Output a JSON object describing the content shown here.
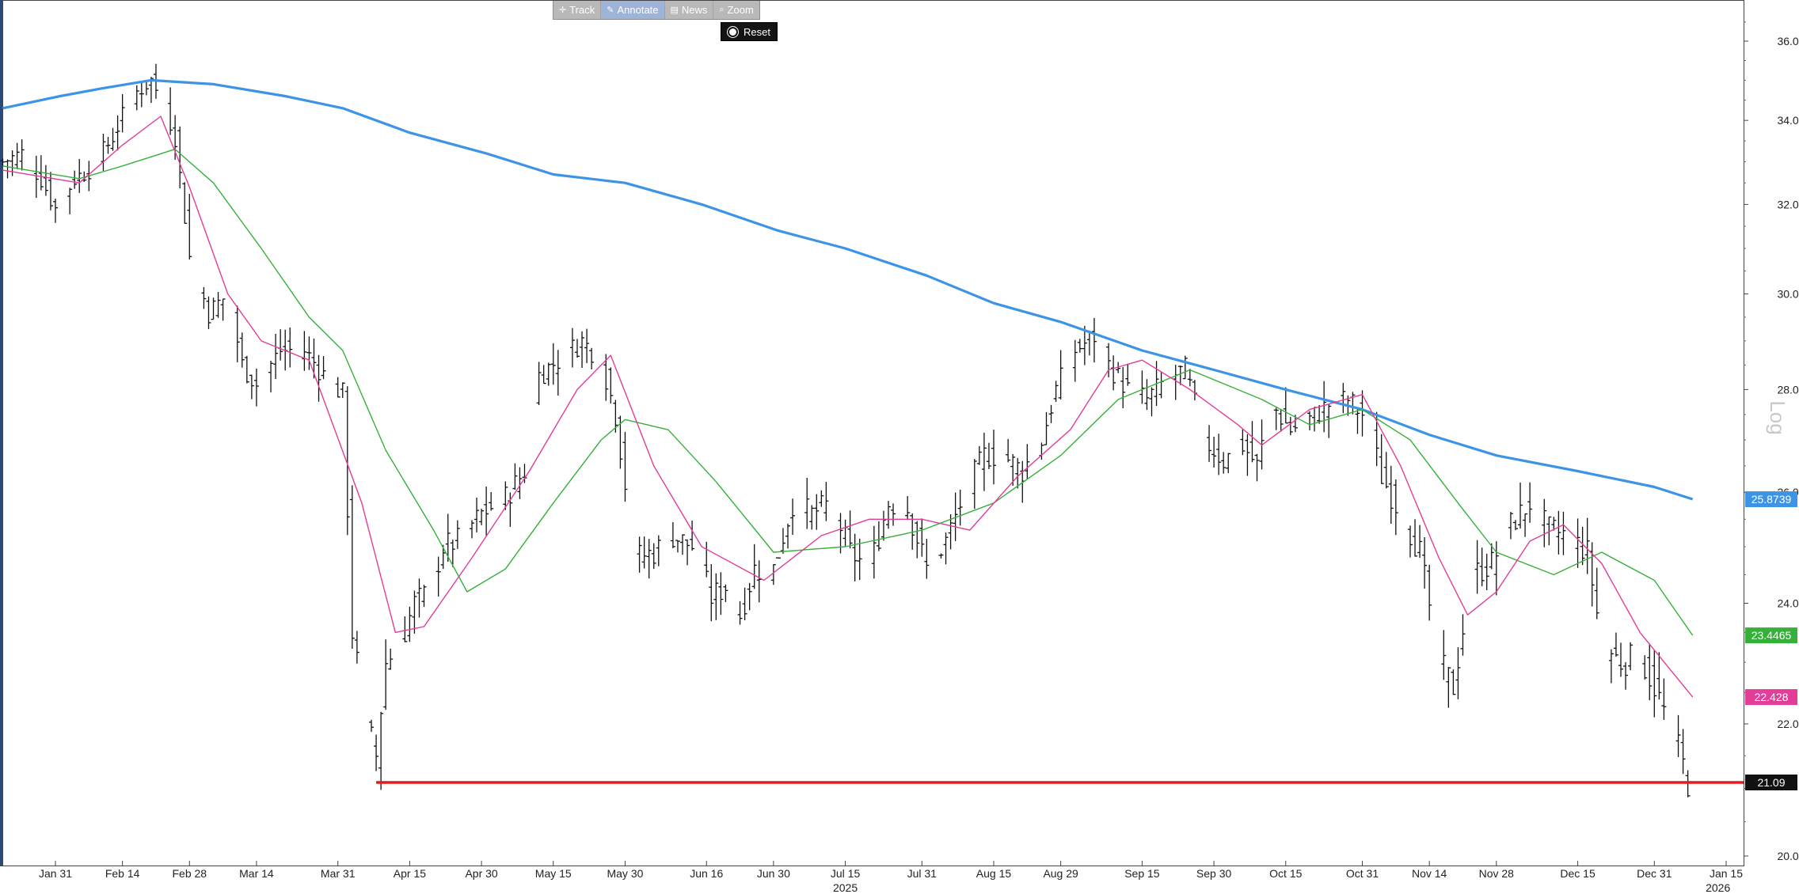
{
  "toolbar": {
    "items": [
      {
        "label": "Track",
        "icon": "crosshair-icon",
        "active": false
      },
      {
        "label": "Annotate",
        "icon": "pencil-icon",
        "active": true
      },
      {
        "label": "News",
        "icon": "news-icon",
        "active": false
      },
      {
        "label": "Zoom",
        "icon": "magnifier-icon",
        "active": false
      }
    ],
    "reset_label": "Reset"
  },
  "chart_data": {
    "type": "line",
    "chart_style": "ohlc-bar",
    "y_scale": "log",
    "scale_label": "Log",
    "ylim": [
      20.0,
      37.0
    ],
    "y_ticks": [
      "20.00",
      "22.00",
      "24.00",
      "26.00",
      "28.00",
      "30.00",
      "32.00",
      "34.00",
      "36.00"
    ],
    "xlim": [
      "2025-01-19",
      "2026-01-16"
    ],
    "x_ticks": [
      {
        "date": "2025-01-31",
        "label": "Jan 31"
      },
      {
        "date": "2025-02-14",
        "label": "Feb 14"
      },
      {
        "date": "2025-02-28",
        "label": "Feb 28"
      },
      {
        "date": "2025-03-14",
        "label": "Mar 14"
      },
      {
        "date": "2025-03-31",
        "label": "Mar 31"
      },
      {
        "date": "2025-04-15",
        "label": "Apr 15"
      },
      {
        "date": "2025-04-30",
        "label": "Apr 30"
      },
      {
        "date": "2025-05-15",
        "label": "May 15"
      },
      {
        "date": "2025-05-30",
        "label": "May 30"
      },
      {
        "date": "2025-06-16",
        "label": "Jun 16"
      },
      {
        "date": "2025-06-30",
        "label": "Jun 30"
      },
      {
        "date": "2025-07-15",
        "label": "Jul 15"
      },
      {
        "date": "2025-07-31",
        "label": "Jul 31"
      },
      {
        "date": "2025-08-15",
        "label": "Aug 15"
      },
      {
        "date": "2025-08-29",
        "label": "Aug 29"
      },
      {
        "date": "2025-09-15",
        "label": "Sep 15"
      },
      {
        "date": "2025-09-30",
        "label": "Sep 30"
      },
      {
        "date": "2025-10-15",
        "label": "Oct 15"
      },
      {
        "date": "2025-10-31",
        "label": "Oct 31"
      },
      {
        "date": "2025-11-14",
        "label": "Nov 14"
      },
      {
        "date": "2025-11-28",
        "label": "Nov 28"
      },
      {
        "date": "2025-12-15",
        "label": "Dec 15"
      },
      {
        "date": "2025-12-31",
        "label": "Dec 31"
      },
      {
        "date": "2026-01-15",
        "label": "Jan 15"
      }
    ],
    "year_labels": [
      {
        "date": "2025-07-15",
        "label": "2025"
      },
      {
        "date": "2026-01-08",
        "label": "2026"
      }
    ],
    "price_anchors": [
      [
        "2025-01-20",
        33.0
      ],
      [
        "2025-01-24",
        33.2
      ],
      [
        "2025-01-28",
        32.6
      ],
      [
        "2025-01-31",
        31.9
      ],
      [
        "2025-02-04",
        32.6
      ],
      [
        "2025-02-08",
        32.9
      ],
      [
        "2025-02-12",
        33.6
      ],
      [
        "2025-02-16",
        34.6
      ],
      [
        "2025-02-20",
        35.0
      ],
      [
        "2025-02-23",
        34.3
      ],
      [
        "2025-02-25",
        33.6
      ],
      [
        "2025-02-28",
        30.8
      ],
      [
        "2025-03-04",
        29.6
      ],
      [
        "2025-03-08",
        30.0
      ],
      [
        "2025-03-11",
        28.5
      ],
      [
        "2025-03-14",
        28.1
      ],
      [
        "2025-03-19",
        28.8
      ],
      [
        "2025-03-24",
        28.8
      ],
      [
        "2025-03-28",
        28.3
      ],
      [
        "2025-04-01",
        27.9
      ],
      [
        "2025-04-03",
        23.5
      ],
      [
        "2025-04-06",
        22.0
      ],
      [
        "2025-04-08",
        21.5
      ],
      [
        "2025-04-10",
        23.0
      ],
      [
        "2025-04-13",
        23.3
      ],
      [
        "2025-04-16",
        24.0
      ],
      [
        "2025-04-19",
        24.2
      ],
      [
        "2025-04-22",
        25.0
      ],
      [
        "2025-04-25",
        25.1
      ],
      [
        "2025-04-30",
        25.6
      ],
      [
        "2025-05-05",
        25.9
      ],
      [
        "2025-05-09",
        26.4
      ],
      [
        "2025-05-12",
        28.3
      ],
      [
        "2025-05-16",
        28.6
      ],
      [
        "2025-05-21",
        29.0
      ],
      [
        "2025-05-25",
        28.6
      ],
      [
        "2025-05-28",
        27.5
      ],
      [
        "2025-06-01",
        24.8
      ],
      [
        "2025-06-05",
        24.9
      ],
      [
        "2025-06-09",
        25.2
      ],
      [
        "2025-06-13",
        25.0
      ],
      [
        "2025-06-17",
        24.1
      ],
      [
        "2025-06-20",
        24.3
      ],
      [
        "2025-06-23",
        23.8
      ],
      [
        "2025-06-26",
        24.6
      ],
      [
        "2025-06-30",
        24.6
      ],
      [
        "2025-07-04",
        25.8
      ],
      [
        "2025-07-08",
        25.6
      ],
      [
        "2025-07-12",
        25.8
      ],
      [
        "2025-07-16",
        24.9
      ],
      [
        "2025-07-20",
        24.6
      ],
      [
        "2025-07-24",
        25.8
      ],
      [
        "2025-07-28",
        25.7
      ],
      [
        "2025-08-01",
        24.6
      ],
      [
        "2025-08-05",
        25.1
      ],
      [
        "2025-08-09",
        26.0
      ],
      [
        "2025-08-13",
        26.7
      ],
      [
        "2025-08-17",
        26.7
      ],
      [
        "2025-08-21",
        26.4
      ],
      [
        "2025-08-25",
        27.0
      ],
      [
        "2025-08-28",
        28.0
      ],
      [
        "2025-09-01",
        28.8
      ],
      [
        "2025-09-05",
        29.1
      ],
      [
        "2025-09-08",
        28.5
      ],
      [
        "2025-09-12",
        28.0
      ],
      [
        "2025-09-16",
        27.8
      ],
      [
        "2025-09-20",
        28.2
      ],
      [
        "2025-09-24",
        28.4
      ],
      [
        "2025-09-28",
        27.0
      ],
      [
        "2025-10-02",
        26.6
      ],
      [
        "2025-10-06",
        26.9
      ],
      [
        "2025-10-09",
        26.5
      ],
      [
        "2025-10-12",
        27.7
      ],
      [
        "2025-10-16",
        27.2
      ],
      [
        "2025-10-20",
        27.4
      ],
      [
        "2025-10-24",
        27.7
      ],
      [
        "2025-10-28",
        27.8
      ],
      [
        "2025-11-01",
        27.4
      ],
      [
        "2025-11-04",
        26.3
      ],
      [
        "2025-11-08",
        25.6
      ],
      [
        "2025-11-12",
        24.9
      ],
      [
        "2025-11-16",
        23.0
      ],
      [
        "2025-11-19",
        22.6
      ],
      [
        "2025-11-23",
        24.5
      ],
      [
        "2025-11-27",
        24.7
      ],
      [
        "2025-12-01",
        25.4
      ],
      [
        "2025-12-05",
        25.8
      ],
      [
        "2025-12-09",
        25.3
      ],
      [
        "2025-12-13",
        25.2
      ],
      [
        "2025-12-17",
        24.9
      ],
      [
        "2025-12-20",
        23.3
      ],
      [
        "2025-12-24",
        23.0
      ],
      [
        "2025-12-28",
        23.1
      ],
      [
        "2025-12-31",
        22.6
      ],
      [
        "2026-01-03",
        22.0
      ],
      [
        "2026-01-05",
        21.6
      ],
      [
        "2026-01-07",
        21.1
      ]
    ],
    "series": [
      {
        "name": "",
        "color": "#3d94e6",
        "tag_label": "25.8739",
        "points": [
          [
            "2025-01-20",
            34.3
          ],
          [
            "2025-02-01",
            34.6
          ],
          [
            "2025-02-10",
            34.8
          ],
          [
            "2025-02-20",
            35.0
          ],
          [
            "2025-03-05",
            34.9
          ],
          [
            "2025-03-20",
            34.6
          ],
          [
            "2025-04-01",
            34.3
          ],
          [
            "2025-04-15",
            33.7
          ],
          [
            "2025-05-01",
            33.2
          ],
          [
            "2025-05-15",
            32.7
          ],
          [
            "2025-05-30",
            32.5
          ],
          [
            "2025-06-15",
            32.0
          ],
          [
            "2025-07-01",
            31.4
          ],
          [
            "2025-07-15",
            31.0
          ],
          [
            "2025-08-01",
            30.4
          ],
          [
            "2025-08-15",
            29.8
          ],
          [
            "2025-08-29",
            29.4
          ],
          [
            "2025-09-15",
            28.8
          ],
          [
            "2025-09-30",
            28.4
          ],
          [
            "2025-10-15",
            28.0
          ],
          [
            "2025-10-31",
            27.6
          ],
          [
            "2025-11-14",
            27.1
          ],
          [
            "2025-11-28",
            26.7
          ],
          [
            "2025-12-15",
            26.4
          ],
          [
            "2025-12-31",
            26.1
          ],
          [
            "2026-01-08",
            25.87
          ]
        ]
      },
      {
        "name": "",
        "color": "#36b03a",
        "tag_label": "23.4465",
        "points": [
          [
            "2025-01-20",
            32.9
          ],
          [
            "2025-02-05",
            32.6
          ],
          [
            "2025-02-14",
            32.9
          ],
          [
            "2025-02-25",
            33.3
          ],
          [
            "2025-03-05",
            32.5
          ],
          [
            "2025-03-15",
            31.0
          ],
          [
            "2025-03-25",
            29.5
          ],
          [
            "2025-04-01",
            28.8
          ],
          [
            "2025-04-10",
            26.8
          ],
          [
            "2025-04-20",
            25.3
          ],
          [
            "2025-04-27",
            24.2
          ],
          [
            "2025-05-05",
            24.6
          ],
          [
            "2025-05-15",
            25.8
          ],
          [
            "2025-05-25",
            27.0
          ],
          [
            "2025-05-30",
            27.4
          ],
          [
            "2025-06-08",
            27.2
          ],
          [
            "2025-06-18",
            26.2
          ],
          [
            "2025-06-30",
            24.9
          ],
          [
            "2025-07-15",
            25.0
          ],
          [
            "2025-07-31",
            25.3
          ],
          [
            "2025-08-15",
            25.8
          ],
          [
            "2025-08-29",
            26.7
          ],
          [
            "2025-09-10",
            27.8
          ],
          [
            "2025-09-25",
            28.4
          ],
          [
            "2025-10-10",
            27.8
          ],
          [
            "2025-10-20",
            27.3
          ],
          [
            "2025-10-31",
            27.6
          ],
          [
            "2025-11-10",
            27.0
          ],
          [
            "2025-11-20",
            25.8
          ],
          [
            "2025-11-28",
            24.9
          ],
          [
            "2025-12-10",
            24.5
          ],
          [
            "2025-12-20",
            24.9
          ],
          [
            "2025-12-31",
            24.4
          ],
          [
            "2026-01-08",
            23.45
          ]
        ]
      },
      {
        "name": "",
        "color": "#e23d97",
        "tag_label": "22.428",
        "points": [
          [
            "2025-01-20",
            32.8
          ],
          [
            "2025-02-05",
            32.5
          ],
          [
            "2025-02-14",
            33.4
          ],
          [
            "2025-02-22",
            34.1
          ],
          [
            "2025-02-28",
            32.4
          ],
          [
            "2025-03-08",
            30.0
          ],
          [
            "2025-03-15",
            29.0
          ],
          [
            "2025-03-25",
            28.6
          ],
          [
            "2025-04-05",
            25.8
          ],
          [
            "2025-04-12",
            23.5
          ],
          [
            "2025-04-18",
            23.6
          ],
          [
            "2025-04-28",
            24.8
          ],
          [
            "2025-05-10",
            26.4
          ],
          [
            "2025-05-20",
            28.0
          ],
          [
            "2025-05-27",
            28.7
          ],
          [
            "2025-06-05",
            26.5
          ],
          [
            "2025-06-15",
            25.0
          ],
          [
            "2025-06-28",
            24.4
          ],
          [
            "2025-07-10",
            25.2
          ],
          [
            "2025-07-20",
            25.5
          ],
          [
            "2025-07-31",
            25.5
          ],
          [
            "2025-08-10",
            25.3
          ],
          [
            "2025-08-20",
            26.3
          ],
          [
            "2025-08-31",
            27.2
          ],
          [
            "2025-09-08",
            28.4
          ],
          [
            "2025-09-15",
            28.6
          ],
          [
            "2025-09-25",
            28.0
          ],
          [
            "2025-10-05",
            27.3
          ],
          [
            "2025-10-10",
            26.9
          ],
          [
            "2025-10-20",
            27.6
          ],
          [
            "2025-10-31",
            27.9
          ],
          [
            "2025-11-08",
            26.5
          ],
          [
            "2025-11-16",
            24.8
          ],
          [
            "2025-11-22",
            23.8
          ],
          [
            "2025-11-28",
            24.2
          ],
          [
            "2025-12-05",
            25.1
          ],
          [
            "2025-12-12",
            25.4
          ],
          [
            "2025-12-20",
            24.7
          ],
          [
            "2025-12-28",
            23.5
          ],
          [
            "2026-01-08",
            22.43
          ]
        ]
      }
    ],
    "support_line": {
      "value": 21.09,
      "from": "2025-04-08",
      "to": "2026-01-16",
      "color": "#e31b1b",
      "tag_label": "21.09"
    },
    "tags": [
      {
        "label": "25.8739",
        "value": 25.87,
        "bg": "#3d94e6",
        "fg": "#ffffff"
      },
      {
        "label": "23.4465",
        "value": 23.45,
        "bg": "#36b03a",
        "fg": "#ffffff"
      },
      {
        "label": "22.428",
        "value": 22.43,
        "bg": "#e23d97",
        "fg": "#ffffff"
      },
      {
        "label": "21.09",
        "value": 21.09,
        "bg": "#111111",
        "fg": "#ffffff"
      }
    ],
    "grid": false,
    "legend": "none"
  }
}
